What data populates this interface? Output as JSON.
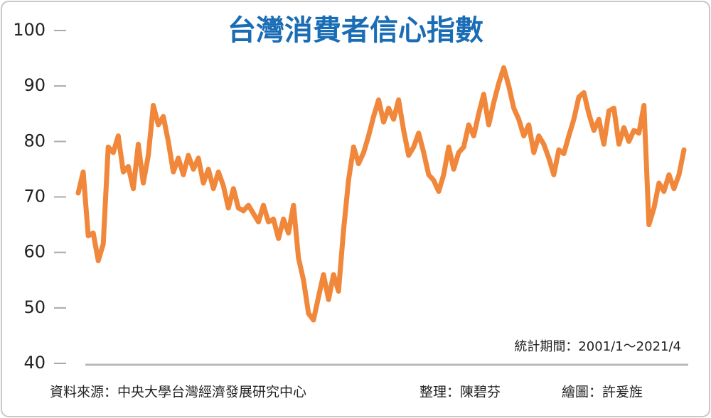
{
  "chart_data": {
    "type": "line",
    "title": "台灣消費者信心指數",
    "note": "統計期間：2001/1～2021/4",
    "source": "資料來源：中央大學台灣經濟發展研究中心",
    "editor": "整理：陳碧芬",
    "artist": "繪圖：許爰旌",
    "color": "#f0873a",
    "ylim": [
      40,
      100
    ],
    "yticks": [
      40,
      50,
      60,
      70,
      80,
      90,
      100
    ],
    "values": [
      70.7,
      74.5,
      63,
      63.5,
      58.5,
      61.5,
      79,
      78,
      81,
      74.5,
      75.5,
      71.5,
      79.5,
      72.5,
      77.5,
      86.5,
      83,
      84.5,
      80,
      74.5,
      77,
      74,
      77.5,
      75,
      77,
      72.5,
      75,
      71.5,
      74.5,
      72,
      68,
      71.5,
      68,
      67.5,
      68.5,
      67,
      65.5,
      68.5,
      65.5,
      66,
      62.5,
      66,
      63.5,
      68.5,
      59,
      55,
      49,
      47.8,
      52,
      56,
      51.5,
      56,
      53,
      64,
      73,
      79,
      76,
      78,
      81,
      84.5,
      87.5,
      83.5,
      86,
      84,
      87.5,
      82,
      77.5,
      79,
      81.5,
      78,
      74,
      73,
      71,
      74,
      79,
      75,
      78,
      79,
      83,
      81,
      85,
      88.5,
      83,
      87,
      90.5,
      93.3,
      90,
      86,
      84,
      81,
      83,
      78,
      81,
      79.5,
      77,
      74,
      78.5,
      77.8,
      81,
      84,
      88,
      88.8,
      85,
      82,
      84,
      79.5,
      85.5,
      86,
      79.5,
      82.5,
      80,
      82,
      81.5,
      86.5,
      65,
      68,
      72.5,
      71,
      74,
      71.5,
      74,
      78.5
    ]
  }
}
